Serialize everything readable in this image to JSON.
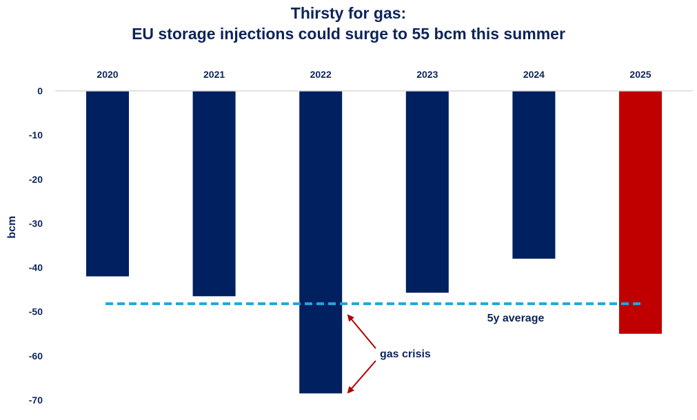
{
  "chart_data": {
    "type": "bar",
    "title_line1": "Thirsty for gas:",
    "title_line2": "EU storage injections could surge to 55 bcm this summer",
    "ylabel": "bcm",
    "xlabel": "",
    "ylim": [
      -70,
      0
    ],
    "yticks": [
      "0",
      "-10",
      "-20",
      "-30",
      "-40",
      "-50",
      "-60",
      "-70"
    ],
    "ytick_values": [
      0,
      -10,
      -20,
      -30,
      -40,
      -50,
      -60,
      -70
    ],
    "categories": [
      "2020",
      "2021",
      "2022",
      "2023",
      "2024",
      "2025"
    ],
    "values": [
      -42,
      -46.5,
      -68.5,
      -45.7,
      -38,
      -55
    ],
    "bar_colors": [
      "#002060",
      "#002060",
      "#002060",
      "#002060",
      "#002060",
      "#c00000"
    ],
    "reference_line": {
      "label": "5y average",
      "value": -48.2,
      "color": "#1ea7e1"
    },
    "annotation": {
      "text": "gas crisis",
      "color": "#b00000"
    },
    "grid": false,
    "legend": "none"
  }
}
